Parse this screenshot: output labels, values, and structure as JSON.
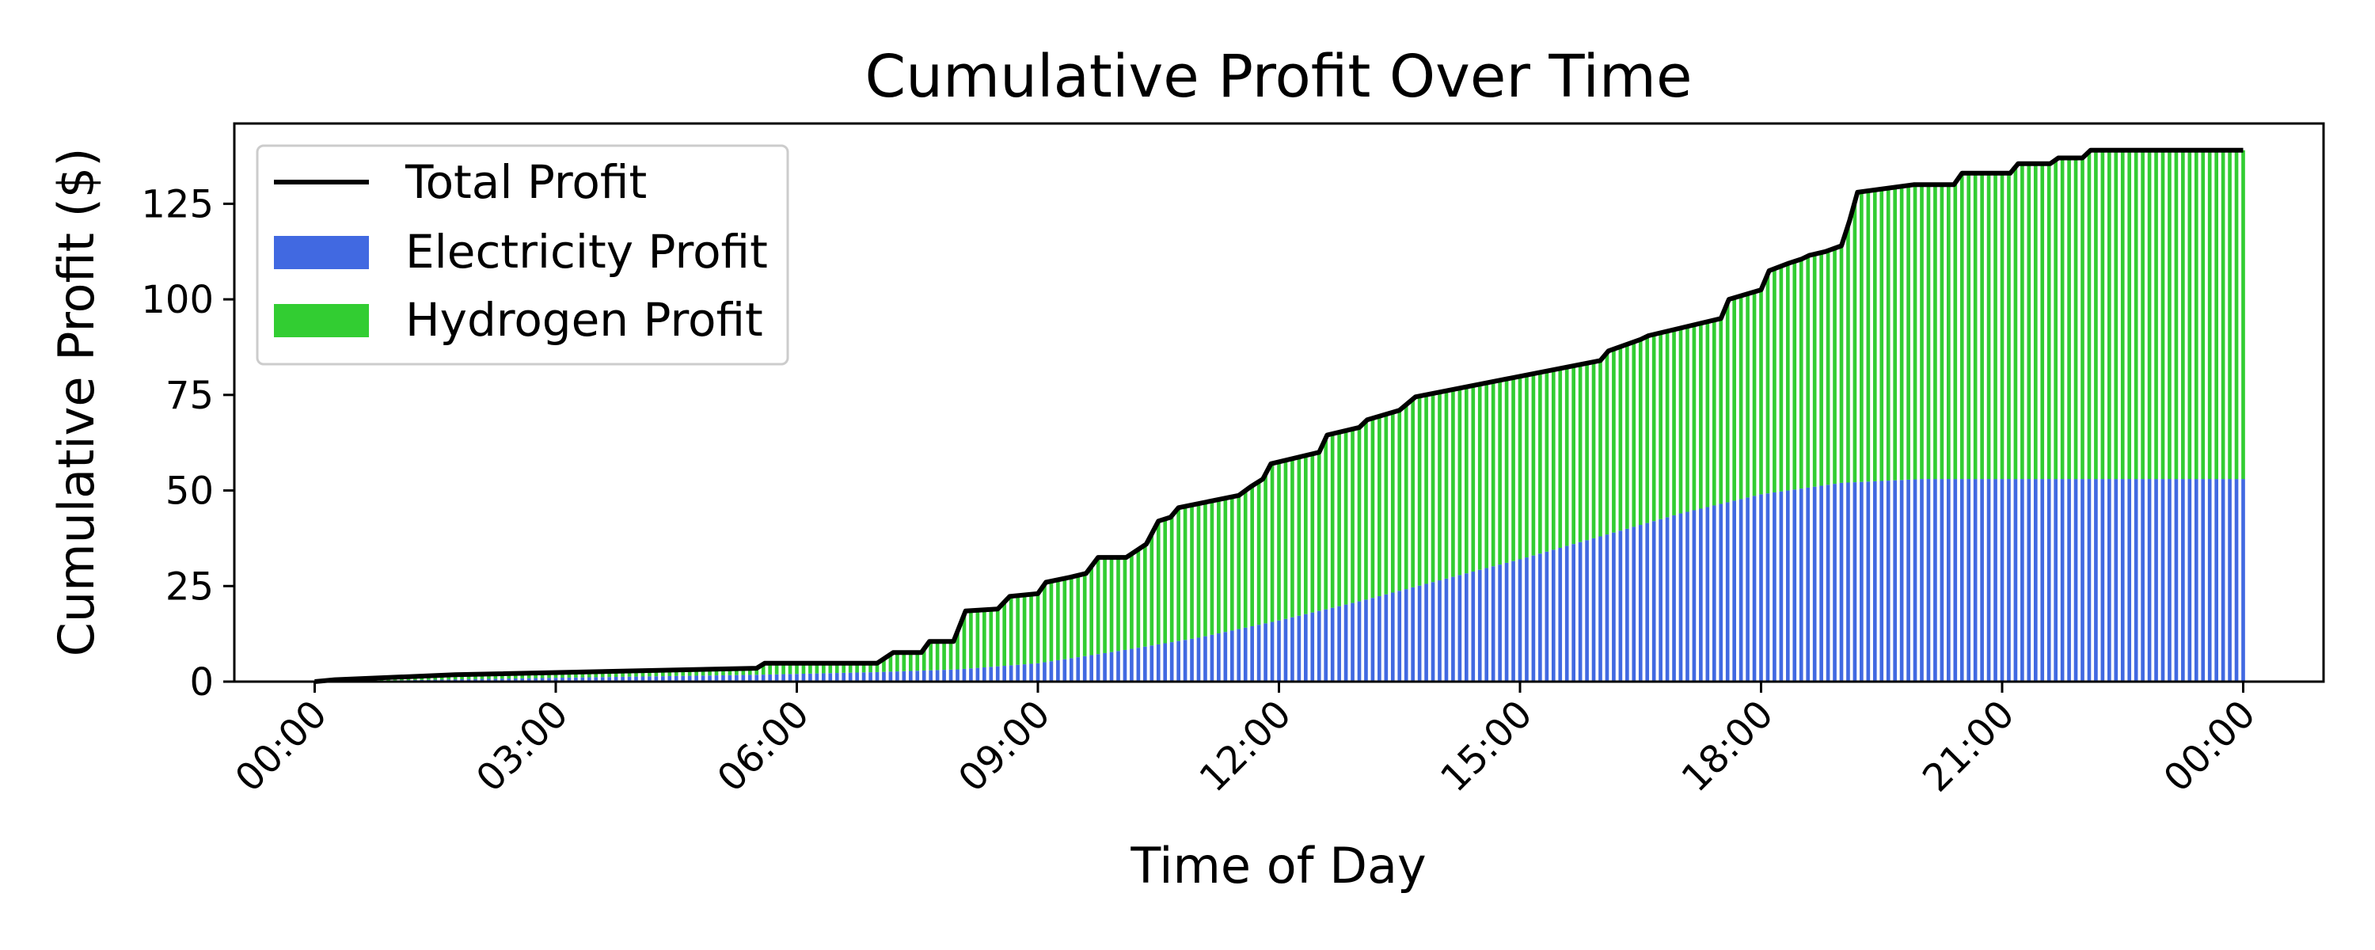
{
  "chart_data": {
    "type": "area",
    "title": "Cumulative Profit Over Time",
    "xlabel": "Time of Day",
    "ylabel": "Cumulative Profit ($)",
    "ylim": [
      0,
      146
    ],
    "xlim_hours": [
      -1.0,
      25.0
    ],
    "x_ticks": [
      "00:00",
      "03:00",
      "06:00",
      "09:00",
      "12:00",
      "15:00",
      "18:00",
      "21:00",
      "00:00"
    ],
    "x_tick_hours": [
      0,
      3,
      6,
      9,
      12,
      15,
      18,
      21,
      24
    ],
    "y_ticks": [
      0,
      25,
      50,
      75,
      100,
      125
    ],
    "legend_placement": "upper-left",
    "grid": false,
    "colors": {
      "total": "#000000",
      "electricity": "#4169E1",
      "hydrogen": "#32CD32"
    },
    "series": [
      {
        "name": "Total Profit",
        "kind": "line",
        "points": [
          [
            0,
            0
          ],
          [
            0.25,
            0.5
          ],
          [
            1.75,
            1.8
          ],
          [
            5.5,
            3.5
          ],
          [
            5.6,
            4.8
          ],
          [
            7.0,
            4.8
          ],
          [
            7.2,
            7.6
          ],
          [
            7.55,
            7.6
          ],
          [
            7.65,
            10.5
          ],
          [
            7.95,
            10.5
          ],
          [
            8.1,
            18.5
          ],
          [
            8.5,
            19.0
          ],
          [
            8.65,
            22.3
          ],
          [
            9.0,
            23.0
          ],
          [
            9.1,
            26.0
          ],
          [
            9.4,
            27.3
          ],
          [
            9.6,
            28.3
          ],
          [
            9.75,
            32.5
          ],
          [
            10.1,
            32.5
          ],
          [
            10.35,
            36.0
          ],
          [
            10.5,
            42.0
          ],
          [
            10.65,
            43.0
          ],
          [
            10.75,
            45.5
          ],
          [
            11.5,
            48.7
          ],
          [
            11.65,
            51.0
          ],
          [
            11.8,
            53.0
          ],
          [
            11.9,
            57.0
          ],
          [
            12.5,
            60.0
          ],
          [
            12.6,
            64.5
          ],
          [
            13.0,
            66.5
          ],
          [
            13.1,
            68.5
          ],
          [
            13.5,
            71.0
          ],
          [
            13.7,
            74.5
          ],
          [
            16.0,
            84.0
          ],
          [
            16.1,
            86.5
          ],
          [
            16.5,
            89.5
          ],
          [
            16.6,
            90.5
          ],
          [
            17.5,
            95.0
          ],
          [
            17.6,
            100.0
          ],
          [
            18.0,
            102.5
          ],
          [
            18.1,
            107.5
          ],
          [
            18.35,
            109.5
          ],
          [
            18.5,
            110.5
          ],
          [
            18.6,
            111.5
          ],
          [
            18.8,
            112.5
          ],
          [
            19.0,
            114.0
          ],
          [
            19.1,
            120.5
          ],
          [
            19.2,
            128.0
          ],
          [
            19.9,
            130.0
          ],
          [
            20.4,
            130.0
          ],
          [
            20.5,
            133.0
          ],
          [
            21.1,
            133.0
          ],
          [
            21.2,
            135.5
          ],
          [
            21.6,
            135.5
          ],
          [
            21.7,
            137.0
          ],
          [
            22.0,
            137.0
          ],
          [
            22.1,
            139.0
          ],
          [
            24.0,
            139.0
          ]
        ]
      },
      {
        "name": "Electricity Profit",
        "kind": "bars",
        "points": [
          [
            0,
            0
          ],
          [
            1.75,
            0.6
          ],
          [
            5.5,
            1.8
          ],
          [
            7.0,
            2.5
          ],
          [
            8.0,
            3.2
          ],
          [
            9.0,
            4.8
          ],
          [
            10.0,
            8.0
          ],
          [
            11.0,
            11.5
          ],
          [
            12.0,
            16.0
          ],
          [
            13.0,
            21.0
          ],
          [
            14.0,
            26.5
          ],
          [
            15.0,
            32.0
          ],
          [
            16.0,
            38.0
          ],
          [
            17.0,
            44.0
          ],
          [
            18.0,
            49.0
          ],
          [
            19.0,
            52.0
          ],
          [
            20.0,
            53.0
          ],
          [
            24.0,
            53.0
          ]
        ]
      },
      {
        "name": "Hydrogen Profit",
        "kind": "bars-stacked"
      }
    ]
  }
}
